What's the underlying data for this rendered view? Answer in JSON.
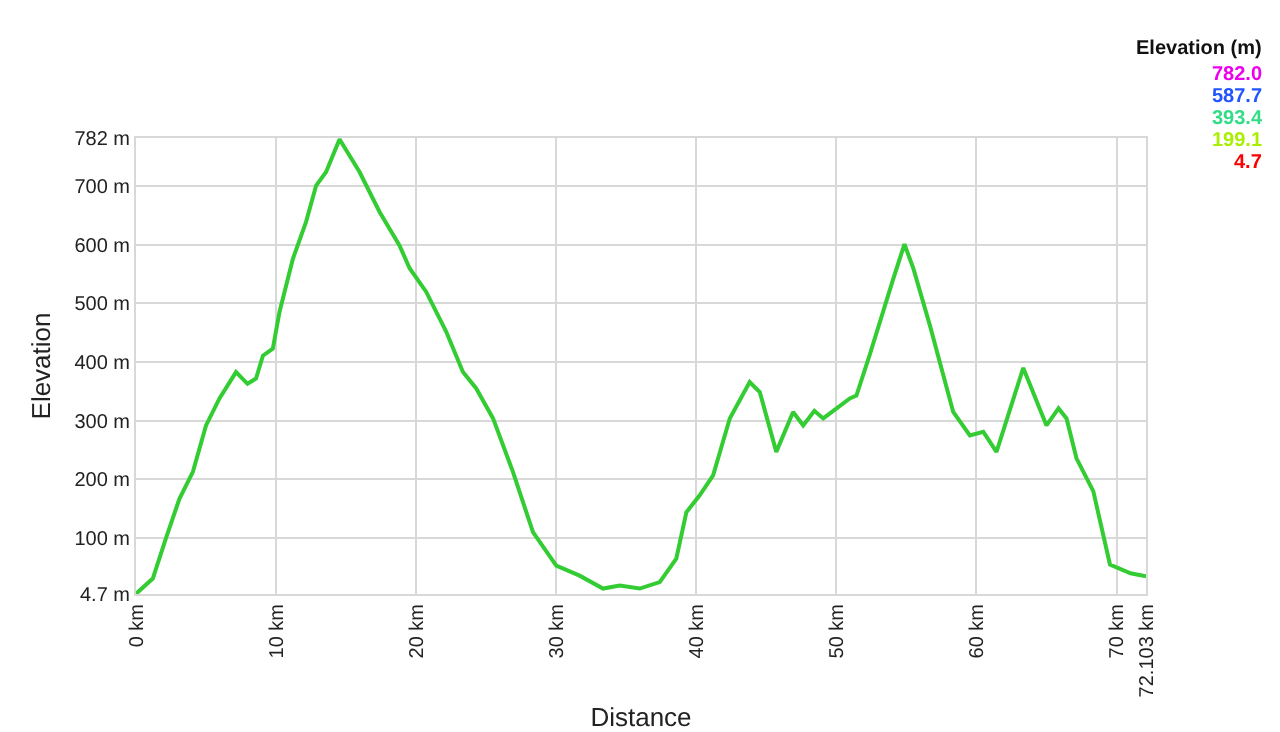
{
  "chart_data": {
    "type": "line",
    "xlabel": "Distance",
    "ylabel": "Elevation",
    "annotations": [
      "Elevation (m)",
      "782.0",
      "587.7",
      "393.4",
      "199.1",
      "4.7"
    ],
    "x": [
      0,
      1.2,
      2.14,
      3.1,
      4.06,
      5.0,
      5.96,
      7.14,
      7.96,
      8.57,
      9.06,
      9.77,
      10.24,
      11.2,
      12.14,
      12.86,
      13.57,
      14.53,
      15.96,
      17.39,
      18.81,
      19.53,
      20.71,
      22.14,
      23.34,
      24.29,
      25.49,
      26.91,
      28.34,
      30.0,
      31.67,
      33.34,
      34.53,
      35.96,
      37.39,
      38.57,
      39.29,
      40.24,
      41.2,
      42.39,
      43.81,
      44.53,
      45.71,
      46.91,
      47.63,
      48.43,
      49.06,
      50.96,
      51.43,
      52.39,
      54.06,
      54.86,
      55.49,
      56.67,
      58.34,
      59.53,
      60.49,
      61.43,
      63.34,
      65.0,
      65.86,
      66.43,
      67.14,
      68.34,
      69.53,
      71.0,
      72.103
    ],
    "values": [
      5,
      31,
      100,
      167,
      213,
      292,
      338,
      383,
      363,
      372,
      411,
      423,
      485,
      576,
      639,
      701,
      724,
      780,
      724,
      656,
      599,
      560,
      520,
      452,
      383,
      355,
      304,
      213,
      110,
      53,
      36,
      14,
      19,
      14,
      25,
      65,
      144,
      173,
      207,
      304,
      366,
      349,
      247,
      315,
      292,
      317,
      304,
      338,
      343,
      413,
      542,
      601,
      560,
      463,
      315,
      275,
      281,
      247,
      390,
      292,
      321,
      304,
      236,
      180,
      55,
      40,
      35
    ],
    "color": "#33cc33",
    "xlim": [
      0,
      72.103
    ],
    "xticks": [
      {
        "value": 0,
        "label": "0 km"
      },
      {
        "value": 10,
        "label": "10 km"
      },
      {
        "value": 20,
        "label": "20 km"
      },
      {
        "value": 30,
        "label": "30 km"
      },
      {
        "value": 40,
        "label": "40 km"
      },
      {
        "value": 50,
        "label": "50 km"
      },
      {
        "value": 60,
        "label": "60 km"
      },
      {
        "value": 70,
        "label": "70 km"
      },
      {
        "value": 72.103,
        "label": "72.103 km"
      }
    ],
    "ylim": [
      4.7,
      782
    ],
    "yticks": [
      {
        "value": 4.7,
        "label": "4.7 m"
      },
      {
        "value": 100,
        "label": "100 m"
      },
      {
        "value": 200,
        "label": "200 m"
      },
      {
        "value": 300,
        "label": "300 m"
      },
      {
        "value": 400,
        "label": "400 m"
      },
      {
        "value": 500,
        "label": "500 m"
      },
      {
        "value": 600,
        "label": "600 m"
      },
      {
        "value": 700,
        "label": "700 m"
      },
      {
        "value": 782,
        "label": "782 m"
      }
    ],
    "grid": true
  }
}
